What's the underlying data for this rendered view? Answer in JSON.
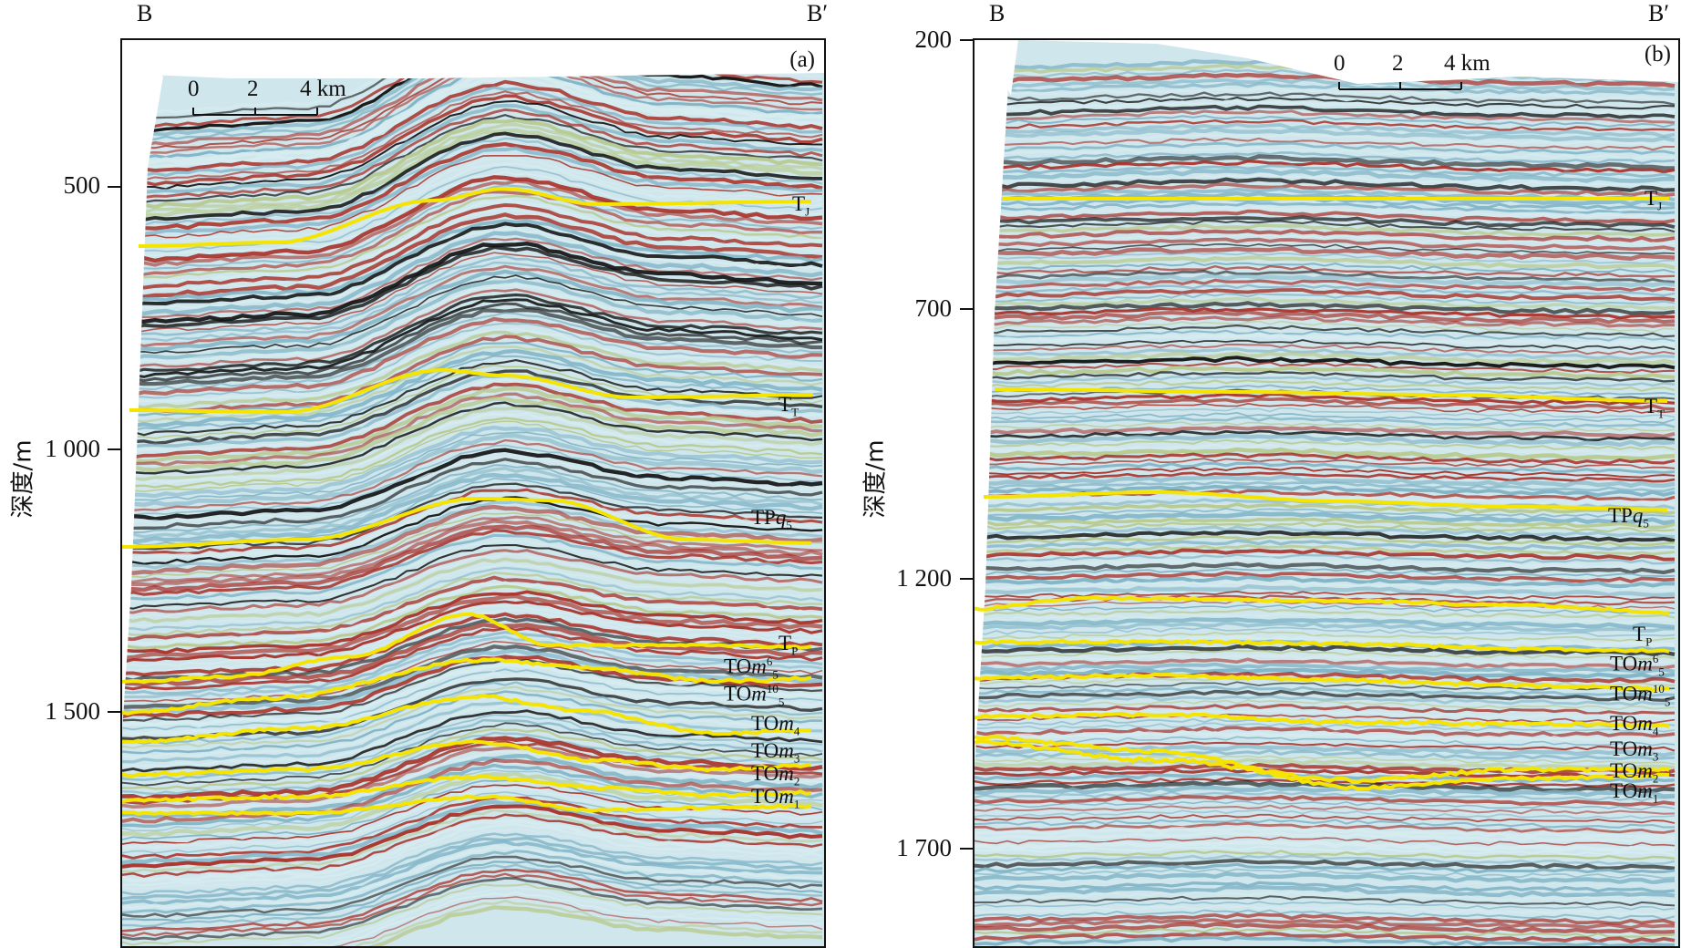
{
  "corner_labels": {
    "panel_a_left": "B",
    "panel_a_right": "B′",
    "panel_b_left": "B",
    "panel_b_right": "B′"
  },
  "y_axis_title": "深度/m",
  "panel_a": {
    "tag": "(a)",
    "y_ticks": [
      "500",
      "1 000",
      "1 500"
    ],
    "scale_bar": [
      "0",
      "2",
      "4 km"
    ],
    "horizons": [
      {
        "main": "T",
        "sub": "J",
        "italic": ""
      },
      {
        "main": "T",
        "sub": "T",
        "italic": ""
      },
      {
        "main": "TP",
        "sub": "5",
        "italic": "q"
      },
      {
        "main": "T",
        "sub": "P",
        "italic": ""
      },
      {
        "main": "TO",
        "sub": "5",
        "italic": "m",
        "sup": "6"
      },
      {
        "main": "TO",
        "sub": "5",
        "italic": "m",
        "sup": "10"
      },
      {
        "main": "TO",
        "sub": "4",
        "italic": "m"
      },
      {
        "main": "TO",
        "sub": "3",
        "italic": "m"
      },
      {
        "main": "TO",
        "sub": "2",
        "italic": "m"
      },
      {
        "main": "TO",
        "sub": "1",
        "italic": "m"
      }
    ]
  },
  "panel_b": {
    "tag": "(b)",
    "y_ticks": [
      "200",
      "700",
      "1 200",
      "1 700"
    ],
    "scale_bar": [
      "0",
      "2",
      "4 km"
    ],
    "horizons": [
      {
        "main": "T",
        "sub": "J",
        "italic": ""
      },
      {
        "main": "T",
        "sub": "T",
        "italic": ""
      },
      {
        "main": "TP",
        "sub": "5",
        "italic": "q"
      },
      {
        "main": "T",
        "sub": "P",
        "italic": ""
      },
      {
        "main": "TO",
        "sub": "5",
        "italic": "m",
        "sup": "6"
      },
      {
        "main": "TO",
        "sub": "5",
        "italic": "m",
        "sup": "10"
      },
      {
        "main": "TO",
        "sub": "4",
        "italic": "m"
      },
      {
        "main": "TO",
        "sub": "3",
        "italic": "m"
      },
      {
        "main": "TO",
        "sub": "2",
        "italic": "m"
      },
      {
        "main": "TO",
        "sub": "1",
        "italic": "m"
      }
    ]
  },
  "colors": {
    "horizon": "#f5e400",
    "seismic_red": "#a8322a",
    "seismic_black": "#111111",
    "seismic_blue": "#7fb3c6",
    "seismic_light": "#d6ecf0",
    "seismic_green": "#b7c98c"
  }
}
